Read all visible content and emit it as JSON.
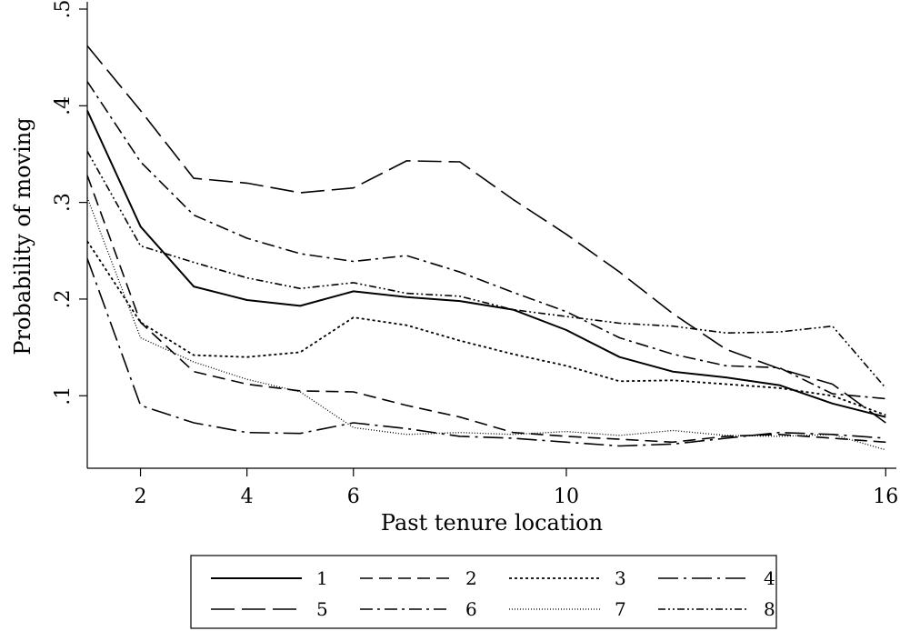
{
  "chart_data": {
    "type": "line",
    "title": "",
    "xlabel": "Past tenure location",
    "ylabel": "Probability of moving",
    "xlim": [
      1,
      16.2
    ],
    "ylim": [
      0.025,
      0.5
    ],
    "xticks": [
      2,
      4,
      6,
      10,
      16
    ],
    "yticks": [
      0.1,
      0.2,
      0.3,
      0.4,
      0.5
    ],
    "xtick_labels": [
      "2",
      "4",
      "6",
      "10",
      "16"
    ],
    "ytick_labels": [
      ".1",
      ".2",
      ".3",
      ".4",
      ".5"
    ],
    "grid": false,
    "legend_position": "bottom",
    "x": [
      1,
      2,
      3,
      4,
      5,
      6,
      7,
      8,
      9,
      10,
      11,
      12,
      13,
      14,
      15,
      16
    ],
    "series": [
      {
        "name": "1",
        "dash": "solid",
        "width": 2.0,
        "values": [
          0.395,
          0.275,
          0.213,
          0.199,
          0.193,
          0.208,
          0.202,
          0.198,
          0.189,
          0.168,
          0.14,
          0.125,
          0.119,
          0.111,
          0.092,
          0.078
        ]
      },
      {
        "name": "2",
        "dash": "14,7",
        "width": 1.6,
        "values": [
          0.328,
          0.176,
          0.125,
          0.112,
          0.105,
          0.104,
          0.09,
          0.078,
          0.062,
          0.058,
          0.055,
          0.052,
          0.058,
          0.06,
          0.056,
          0.052
        ]
      },
      {
        "name": "3",
        "dash": "3,3",
        "width": 1.8,
        "values": [
          0.26,
          0.176,
          0.142,
          0.14,
          0.145,
          0.181,
          0.173,
          0.157,
          0.143,
          0.131,
          0.115,
          0.116,
          0.112,
          0.108,
          0.1,
          0.08
        ]
      },
      {
        "name": "4",
        "dash": "22,6,3,6",
        "width": 1.6,
        "values": [
          0.242,
          0.09,
          0.072,
          0.062,
          0.061,
          0.072,
          0.066,
          0.058,
          0.056,
          0.052,
          0.048,
          0.05,
          0.056,
          0.062,
          0.06,
          0.056
        ]
      },
      {
        "name": "5",
        "dash": "26,8",
        "width": 1.6,
        "values": [
          0.462,
          0.395,
          0.325,
          0.32,
          0.31,
          0.315,
          0.343,
          0.342,
          0.303,
          0.267,
          0.228,
          0.185,
          0.148,
          0.128,
          0.112,
          0.072
        ]
      },
      {
        "name": "6",
        "dash": "14,5,3,5",
        "width": 1.6,
        "values": [
          0.425,
          0.342,
          0.287,
          0.263,
          0.247,
          0.239,
          0.245,
          0.228,
          0.207,
          0.187,
          0.16,
          0.143,
          0.131,
          0.129,
          0.102,
          0.097
        ]
      },
      {
        "name": "7",
        "dash": "1,2",
        "width": 1.3,
        "values": [
          0.305,
          0.16,
          0.135,
          0.117,
          0.104,
          0.067,
          0.06,
          0.062,
          0.06,
          0.063,
          0.059,
          0.064,
          0.059,
          0.058,
          0.06,
          0.044
        ]
      },
      {
        "name": "8",
        "dash": "8,3,2,3,2,3",
        "width": 1.6,
        "values": [
          0.353,
          0.255,
          0.238,
          0.222,
          0.211,
          0.217,
          0.206,
          0.203,
          0.189,
          0.182,
          0.175,
          0.172,
          0.165,
          0.166,
          0.172,
          0.108
        ]
      }
    ],
    "legend_labels": [
      "1",
      "2",
      "3",
      "4",
      "5",
      "6",
      "7",
      "8"
    ]
  }
}
